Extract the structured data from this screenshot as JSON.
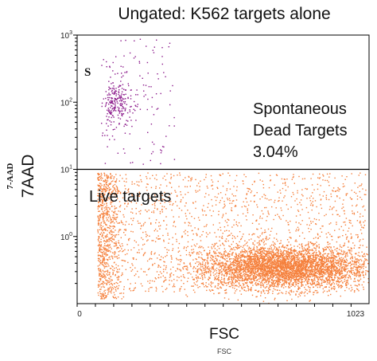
{
  "chart_data": {
    "type": "scatter",
    "title": "Ungated:  K562 targets alone",
    "xlabel": "FSC",
    "xlabel_small": "FSC",
    "ylabel": "7AAD",
    "ylabel_small": "7-AAD",
    "x_axis": {
      "scale": "linear",
      "range": [
        0,
        1023
      ],
      "tick_labels": [
        "0",
        "1023"
      ]
    },
    "y_axis": {
      "scale": "log",
      "range": [
        0.1,
        1000
      ],
      "tick_labels": [
        "10^0",
        "10^1",
        "10^2",
        "10^3"
      ]
    },
    "y_tick_values": [
      1,
      10,
      100,
      1000
    ],
    "gate": {
      "type": "horizontal-threshold",
      "y": 10
    },
    "regions": [
      {
        "label": "S",
        "lines": [
          "Spontaneous",
          "Dead Targets",
          "3.04%"
        ],
        "color": "#8b1a8b",
        "percent": "3.04%"
      },
      {
        "label": "Live targets",
        "color": "#f5803c"
      }
    ],
    "grid": false,
    "legend": "none",
    "colors": {
      "dead": "#8b1a8b",
      "live": "#f5803c",
      "axis": "#000000"
    }
  }
}
